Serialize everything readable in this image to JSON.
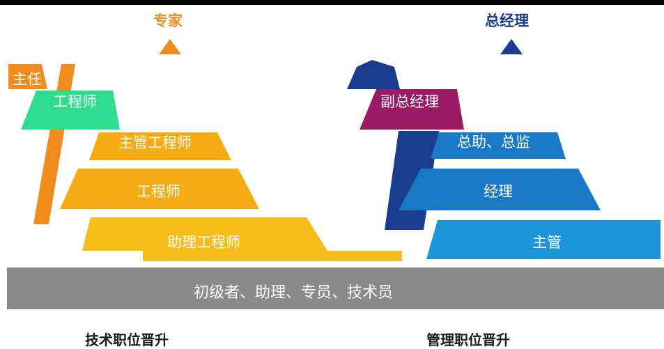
{
  "left_pyramid": {
    "top": "专家",
    "levels": [
      "主任",
      "工程师",
      "主管工程师",
      "工程师",
      "助理工程师"
    ],
    "footer": "技术职位晋升"
  },
  "right_pyramid": {
    "top": "总经理",
    "levels": [
      "副总经理",
      "总助、总监",
      "经理",
      "主管"
    ],
    "footer": "管理职位晋升"
  },
  "base": "初级者、助理、专员、技术员",
  "colors": {
    "orange": "#f08c1e",
    "green": "#2ddc8c",
    "yellow": "#f5ac14",
    "gold": "#f8bc18",
    "navy": "#1a3c8c",
    "maroon": "#9a1a64",
    "blue": "#1a78c8",
    "light_blue": "#1c96d8",
    "gray": "#8a8a8a"
  }
}
